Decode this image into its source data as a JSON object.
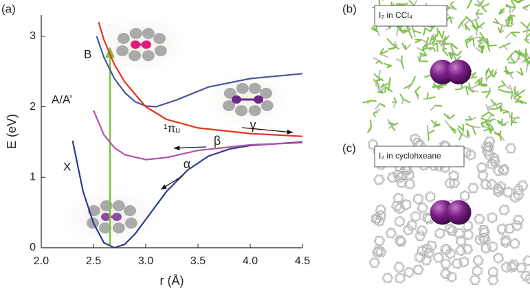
{
  "chart_data": {
    "type": "line",
    "panel_labels": [
      "(a)",
      "(b)",
      "(c)"
    ],
    "x_label": "r (Å)",
    "y_label": "E (eV)",
    "xlim": [
      2.0,
      4.5
    ],
    "ylim": [
      0,
      3.3
    ],
    "xticks": [
      {
        "value": 2.0,
        "label": "2.0"
      },
      {
        "value": 2.5,
        "label": "2.5"
      },
      {
        "value": 3.0,
        "label": "3.0"
      },
      {
        "value": 3.5,
        "label": "3.5"
      },
      {
        "value": 4.0,
        "label": "4.0"
      },
      {
        "value": 4.5,
        "label": "4.5"
      }
    ],
    "yticks": [
      0,
      1,
      2,
      3
    ],
    "series": [
      {
        "name": "X",
        "color": "#2b3990",
        "x": [
          2.3,
          2.4,
          2.5,
          2.6,
          2.7,
          2.8,
          2.9,
          3.0,
          3.2,
          3.4,
          3.6,
          3.8,
          4.0,
          4.5
        ],
        "values": [
          1.52,
          0.8,
          0.35,
          0.07,
          0,
          0.05,
          0.2,
          0.4,
          0.8,
          1.1,
          1.3,
          1.4,
          1.45,
          1.5
        ]
      },
      {
        "name": "A/A’",
        "color": "#b552a8",
        "x": [
          2.5,
          2.6,
          2.7,
          2.8,
          3.0,
          3.2,
          3.5,
          4.0,
          4.5
        ],
        "values": [
          1.95,
          1.6,
          1.42,
          1.32,
          1.25,
          1.28,
          1.38,
          1.46,
          1.49
        ]
      },
      {
        "name": "B",
        "color": "#4a559e",
        "x": [
          2.53,
          2.6,
          2.7,
          2.8,
          2.9,
          3.0,
          3.1,
          3.3,
          3.6,
          4.0,
          4.5
        ],
        "values": [
          3.0,
          2.7,
          2.4,
          2.2,
          2.07,
          2.01,
          2.0,
          2.1,
          2.28,
          2.4,
          2.47
        ]
      },
      {
        "name": "¹πᵤ",
        "color": "#e8321e",
        "x": [
          2.55,
          2.6,
          2.7,
          2.8,
          3.0,
          3.2,
          3.5,
          4.0,
          4.5
        ],
        "values": [
          3.2,
          2.95,
          2.6,
          2.35,
          2.0,
          1.82,
          1.7,
          1.62,
          1.58
        ]
      }
    ],
    "annotations": [
      "α",
      "β",
      "γ"
    ],
    "image_captions": [
      "I₂ in CCl₄",
      "I₂ in cyclohxeane"
    ]
  }
}
